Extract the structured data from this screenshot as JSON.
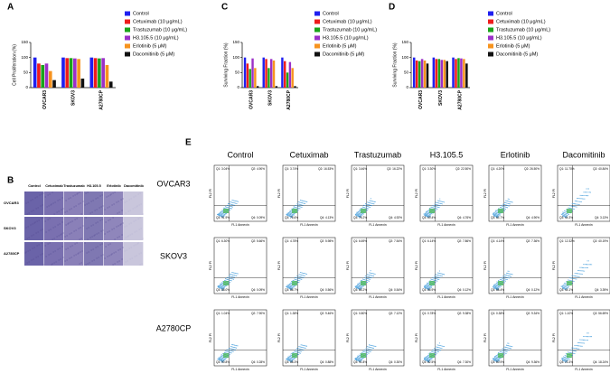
{
  "chart_data": [
    {
      "type": "bar",
      "label": "A",
      "y_label": "Cell Proliferation (%)",
      "categories": [
        "OVCAR3",
        "SKOV3",
        "A2780CP"
      ],
      "ylim": [
        0,
        150
      ],
      "yticks": [
        0,
        50,
        100,
        150
      ],
      "series": [
        {
          "name": "Control",
          "color": "#1f1ff0",
          "values": [
            100,
            100,
            100
          ]
        },
        {
          "name": "Cetuximab (10 μg/mL)",
          "color": "#ee1c1c",
          "values": [
            80,
            98,
            98
          ]
        },
        {
          "name": "Trastuzumab (10 μg/mL)",
          "color": "#1aa41a",
          "values": [
            75,
            98,
            97
          ]
        },
        {
          "name": "H3.105.5 (10 μg/mL)",
          "color": "#9b30c8",
          "values": [
            80,
            97,
            98
          ]
        },
        {
          "name": "Erlotinib (5 μM)",
          "color": "#f7931e",
          "values": [
            55,
            95,
            75
          ]
        },
        {
          "name": "Dacomitinib (5 μM)",
          "color": "#111111",
          "values": [
            25,
            30,
            20
          ]
        }
      ]
    },
    {
      "type": "bar",
      "label": "C",
      "y_label": "Surviving Fraction (%)",
      "categories": [
        "OVCAR3",
        "SKOV3",
        "A2780CP"
      ],
      "ylim": [
        0,
        150
      ],
      "yticks": [
        0,
        50,
        100,
        150
      ],
      "series": [
        {
          "name": "Control",
          "color": "#1f1ff0",
          "values": [
            100,
            100,
            100
          ]
        },
        {
          "name": "Cetuximab (10 μg/mL)",
          "color": "#ee1c1c",
          "values": [
            80,
            95,
            88
          ]
        },
        {
          "name": "Trastuzumab (10 μg/mL)",
          "color": "#1aa41a",
          "values": [
            62,
            65,
            50
          ]
        },
        {
          "name": "H3.105.5 (10 μg/mL)",
          "color": "#9b30c8",
          "values": [
            97,
            95,
            85
          ]
        },
        {
          "name": "Erlotinib (5 μM)",
          "color": "#f7931e",
          "values": [
            65,
            90,
            65
          ]
        },
        {
          "name": "Dacomitinib (5 μM)",
          "color": "#111111",
          "values": [
            5,
            5,
            5
          ]
        }
      ]
    },
    {
      "type": "bar",
      "label": "D",
      "y_label": "Surviving Fraction (%)",
      "categories": [
        "OVCAR3",
        "SKOV3",
        "A2780CP"
      ],
      "ylim": [
        0,
        150
      ],
      "yticks": [
        0,
        50,
        100,
        150
      ],
      "series": [
        {
          "name": "Control",
          "color": "#1f1ff0",
          "values": [
            100,
            100,
            100
          ]
        },
        {
          "name": "Cetuximab (10 μg/mL)",
          "color": "#ee1c1c",
          "values": [
            90,
            95,
            95
          ]
        },
        {
          "name": "Trastuzumab (10 μg/mL)",
          "color": "#1aa41a",
          "values": [
            88,
            95,
            98
          ]
        },
        {
          "name": "H3.105.5 (10 μg/mL)",
          "color": "#9b30c8",
          "values": [
            95,
            92,
            97
          ]
        },
        {
          "name": "Erlotinib (5 μM)",
          "color": "#f7931e",
          "values": [
            90,
            92,
            95
          ]
        },
        {
          "name": "Dacomitinib (5 μM)",
          "color": "#111111",
          "values": [
            80,
            88,
            80
          ]
        }
      ]
    }
  ],
  "panel_b": {
    "label": "B",
    "columns": [
      "Control",
      "Cetuximab",
      "Trastuzumab",
      "H3.105.5",
      "Erlotinib",
      "Dacomitinib"
    ],
    "rows": [
      "OVCAR3",
      "SKOV3",
      "A2780CP"
    ]
  },
  "panel_e": {
    "label": "E",
    "columns": [
      "Control",
      "Cetuximab",
      "Trastuzumab",
      "H3.105.5",
      "Erlotinib",
      "Dacomitinib"
    ],
    "rows": [
      "OVCAR3",
      "SKOV3",
      "A2780CP"
    ],
    "x_label": "FL1 Annexin",
    "y_label": "FL2 PI",
    "quadrants": [
      [
        [
          "Q1: 3.04%",
          "Q2: 4.90%",
          "Q3: 91.9%",
          "Q4: 0.09%"
        ],
        [
          "Q1: 3.74%",
          "Q2: 16.53%",
          "Q3: 75.6%",
          "Q4: 4.13%"
        ],
        [
          "Q1: 3.46%",
          "Q2: 16.22%",
          "Q3: 76.2%",
          "Q4: 4.92%"
        ],
        [
          "Q1: 3.30%",
          "Q2: 22.50%",
          "Q3: 69.4%",
          "Q4: 4.76%"
        ],
        [
          "Q1: 4.20%",
          "Q2: 26.50%",
          "Q3: 64.7%",
          "Q4: 4.90%"
        ],
        [
          "Q1: 11.70%",
          "Q2: 40.84%",
          "Q3: 44.3%",
          "Q4: 3.13%"
        ]
      ],
      [
        [
          "Q1: 6.30%",
          "Q2: 5.66%",
          "Q3: 88.0%",
          "Q4: 0.09%"
        ],
        [
          "Q1: 4.78%",
          "Q2: 5.98%",
          "Q3: 88.7%",
          "Q4: 0.56%"
        ],
        [
          "Q1: 6.69%",
          "Q2: 7.54%",
          "Q3: 85.2%",
          "Q4: 0.54%"
        ],
        [
          "Q1: 6.14%",
          "Q2: 7.86%",
          "Q3: 85.9%",
          "Q4: 0.12%"
        ],
        [
          "Q1: 4.14%",
          "Q2: 7.36%",
          "Q3: 88.4%",
          "Q4: 0.12%"
        ],
        [
          "Q1: 12.32%",
          "Q2: 40.19%",
          "Q3: 44.1%",
          "Q4: 3.39%"
        ]
      ],
      [
        [
          "Q1: 1.04%",
          "Q2: 7.90%",
          "Q3: 90.8%",
          "Q4: 0.28%"
        ],
        [
          "Q1: 1.38%",
          "Q2: 9.46%",
          "Q3: 88.3%",
          "Q4: 0.88%"
        ],
        [
          "Q1: 0.80%",
          "Q2: 7.12%",
          "Q3: 91.8%",
          "Q4: 0.30%"
        ],
        [
          "Q1: 0.78%",
          "Q2: 9.38%",
          "Q3: 82.5%",
          "Q4: 7.30%"
        ],
        [
          "Q1: 0.38%",
          "Q2: 9.34%",
          "Q3: 80.9%",
          "Q4: 9.36%"
        ],
        [
          "Q1: 1.10%",
          "Q2: 56.69%",
          "Q3: 23.3%",
          "Q4: 18.24%"
        ]
      ]
    ]
  }
}
